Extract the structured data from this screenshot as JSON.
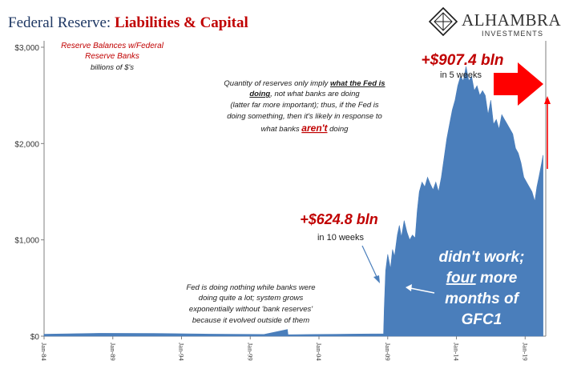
{
  "header": {
    "title_prefix": "Federal Reserve: ",
    "title_highlight": "Liabilities & Capital"
  },
  "logo": {
    "name": "ALHAMBRA",
    "sub": "INVESTMENTS"
  },
  "colors": {
    "navy": "#1f3864",
    "red": "#c00000",
    "series_fill": "#4a7ebb",
    "axis": "#7f7f7f",
    "arrow_red": "#ff0000"
  },
  "chart_data": {
    "type": "area",
    "title": "Reserve Balances w/Federal Reserve Banks",
    "series_title_line1": "Reserve Balances w/Federal",
    "series_title_line2": "Reserve Banks",
    "unit": "billions of $'s",
    "ylim": [
      0,
      3000
    ],
    "xlim": [
      "1984-01",
      "2020-06"
    ],
    "y_ticks": [
      {
        "value": 0,
        "label": "$0"
      },
      {
        "value": 1000,
        "label": "$1,000"
      },
      {
        "value": 2000,
        "label": "$2,000"
      },
      {
        "value": 3000,
        "label": "$3,000"
      }
    ],
    "x_ticks": [
      {
        "x": 1984.0,
        "label": "Jan-84"
      },
      {
        "x": 1989.0,
        "label": "Jan-89"
      },
      {
        "x": 1994.0,
        "label": "Jan-94"
      },
      {
        "x": 1999.0,
        "label": "Jan-99"
      },
      {
        "x": 2004.0,
        "label": "Jan-04"
      },
      {
        "x": 2009.0,
        "label": "Jan-09"
      },
      {
        "x": 2014.0,
        "label": "Jan-14"
      },
      {
        "x": 2019.0,
        "label": "Jan-19"
      }
    ],
    "grid": false,
    "series": [
      {
        "values": [
          [
            1984.0,
            20
          ],
          [
            1988.0,
            30
          ],
          [
            1992.0,
            28
          ],
          [
            1996.0,
            22
          ],
          [
            2000.0,
            18
          ],
          [
            2001.7,
            70
          ],
          [
            2001.75,
            15
          ],
          [
            2008.7,
            25
          ],
          [
            2008.75,
            300
          ],
          [
            2008.85,
            680
          ],
          [
            2009.0,
            850
          ],
          [
            2009.2,
            700
          ],
          [
            2009.35,
            900
          ],
          [
            2009.5,
            830
          ],
          [
            2009.7,
            1050
          ],
          [
            2009.85,
            1150
          ],
          [
            2010.0,
            1030
          ],
          [
            2010.2,
            1200
          ],
          [
            2010.4,
            1080
          ],
          [
            2010.6,
            1000
          ],
          [
            2010.8,
            1050
          ],
          [
            2011.0,
            1020
          ],
          [
            2011.15,
            1300
          ],
          [
            2011.3,
            1500
          ],
          [
            2011.5,
            1600
          ],
          [
            2011.7,
            1550
          ],
          [
            2011.9,
            1650
          ],
          [
            2012.1,
            1580
          ],
          [
            2012.3,
            1520
          ],
          [
            2012.5,
            1600
          ],
          [
            2012.7,
            1500
          ],
          [
            2012.9,
            1650
          ],
          [
            2013.1,
            1850
          ],
          [
            2013.3,
            2050
          ],
          [
            2013.5,
            2200
          ],
          [
            2013.7,
            2350
          ],
          [
            2013.9,
            2450
          ],
          [
            2014.1,
            2600
          ],
          [
            2014.3,
            2700
          ],
          [
            2014.5,
            2650
          ],
          [
            2014.7,
            2800
          ],
          [
            2014.9,
            2650
          ],
          [
            2015.1,
            2700
          ],
          [
            2015.3,
            2550
          ],
          [
            2015.5,
            2600
          ],
          [
            2015.7,
            2500
          ],
          [
            2015.9,
            2550
          ],
          [
            2016.1,
            2500
          ],
          [
            2016.3,
            2300
          ],
          [
            2016.5,
            2450
          ],
          [
            2016.7,
            2200
          ],
          [
            2016.9,
            2250
          ],
          [
            2017.1,
            2150
          ],
          [
            2017.3,
            2300
          ],
          [
            2017.5,
            2250
          ],
          [
            2017.7,
            2200
          ],
          [
            2017.9,
            2150
          ],
          [
            2018.1,
            2100
          ],
          [
            2018.3,
            1950
          ],
          [
            2018.5,
            1900
          ],
          [
            2018.7,
            1800
          ],
          [
            2018.9,
            1650
          ],
          [
            2019.1,
            1600
          ],
          [
            2019.3,
            1550
          ],
          [
            2019.5,
            1500
          ],
          [
            2019.7,
            1400
          ],
          [
            2019.85,
            1550
          ],
          [
            2020.0,
            1650
          ],
          [
            2020.2,
            1800
          ],
          [
            2020.3,
            1880
          ]
        ]
      }
    ]
  },
  "annotations": {
    "quantity_note": {
      "line1_pre": "Quantity of reserves only imply ",
      "line1_emph": "what the Fed is",
      "line2_emph": "doing",
      "line2_post": ", not what banks are doing",
      "line3": "(latter far more important); thus, if the Fed is",
      "line4": "doing something, then it's likely in response to",
      "line5_pre": "what banks ",
      "line5_emph": "aren't",
      "line5_post": " doing"
    },
    "fed_nothing": [
      "Fed is doing nothing while banks were",
      "doing quite a lot; system grows",
      "exponentially without 'bank reserves'",
      "because it evolved outside of them"
    ],
    "gain_2008": {
      "value": "+$624.8 bln",
      "period": "in 10 weeks"
    },
    "gain_2019": {
      "value": "+$907.4 bln",
      "period": "in 5 weeks"
    },
    "didnt_work": {
      "line1": "didn't work;",
      "line2_emph": "four",
      "line2_post": " more",
      "line3": "months of",
      "line4": "GFC1"
    }
  }
}
